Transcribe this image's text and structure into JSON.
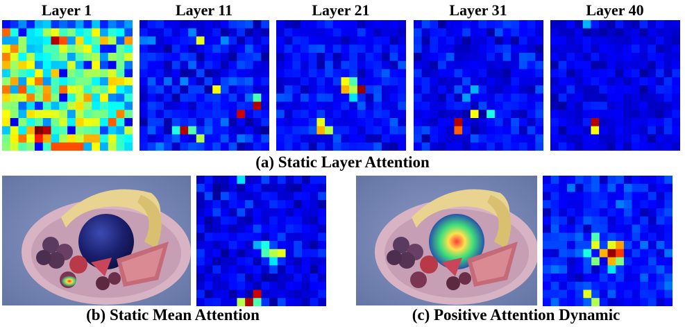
{
  "figure": {
    "layer_titles": [
      "Layer 1",
      "Layer 11",
      "Layer 21",
      "Layer 31",
      "Layer 40"
    ],
    "captions": {
      "a": "(a) Static Layer Attention",
      "b": "(b) Static Mean Attention",
      "c": "(c) Positive Attention Dynamic"
    },
    "colormap": "jet",
    "grid_size": 16,
    "panels": {
      "layer1": {
        "base": 0.45,
        "noise": 0.35,
        "hot": [
          [
            13,
            4,
            1.0
          ],
          [
            13,
            5,
            0.95
          ],
          [
            14,
            4,
            0.85
          ],
          [
            2,
            6,
            0.95
          ],
          [
            2,
            7,
            0.8
          ],
          [
            0,
            4,
            0.3
          ],
          [
            1,
            3,
            0.35
          ],
          [
            15,
            6,
            0.8
          ],
          [
            15,
            7,
            0.8
          ],
          [
            15,
            8,
            0.8
          ],
          [
            15,
            9,
            0.8
          ],
          [
            14,
            10,
            0.7
          ],
          [
            14,
            11,
            0.7
          ],
          [
            11,
            14,
            0.75
          ]
        ],
        "cold_rows": [
          0
        ]
      },
      "layer11": {
        "base": 0.14,
        "noise": 0.12,
        "hot": [
          [
            2,
            7,
            0.6
          ],
          [
            8,
            9,
            0.62
          ],
          [
            9,
            14,
            0.45
          ],
          [
            10,
            14,
            0.95
          ],
          [
            11,
            12,
            0.92
          ],
          [
            13,
            4,
            0.4
          ],
          [
            13,
            5,
            0.95
          ],
          [
            13,
            6,
            0.45
          ],
          [
            14,
            7,
            0.55
          ]
        ]
      },
      "layer21": {
        "base": 0.13,
        "noise": 0.09,
        "hot": [
          [
            7,
            8,
            0.62
          ],
          [
            7,
            9,
            0.45
          ],
          [
            8,
            8,
            0.7
          ],
          [
            8,
            9,
            0.55
          ],
          [
            8,
            10,
            0.98
          ],
          [
            9,
            9,
            0.35
          ],
          [
            12,
            5,
            0.6
          ],
          [
            13,
            5,
            0.7
          ],
          [
            13,
            6,
            0.55
          ]
        ]
      },
      "layer31": {
        "base": 0.12,
        "noise": 0.09,
        "hot": [
          [
            11,
            7,
            0.62
          ],
          [
            11,
            9,
            0.4
          ],
          [
            12,
            5,
            0.95
          ],
          [
            13,
            5,
            0.78
          ],
          [
            8,
            7,
            0.3
          ],
          [
            9,
            6,
            0.28
          ]
        ]
      },
      "layer40": {
        "base": 0.1,
        "noise": 0.07,
        "hot": [
          [
            12,
            5,
            0.95
          ],
          [
            13,
            5,
            0.62
          ],
          [
            0,
            4,
            0.3
          ]
        ]
      },
      "mean_b": {
        "base": 0.11,
        "noise": 0.09,
        "hot": [
          [
            8,
            8,
            0.4
          ],
          [
            9,
            8,
            0.45
          ],
          [
            9,
            9,
            0.55
          ],
          [
            9,
            10,
            0.6
          ],
          [
            8,
            7,
            0.3
          ],
          [
            10,
            9,
            0.35
          ],
          [
            14,
            7,
            0.92
          ],
          [
            15,
            6,
            0.95
          ],
          [
            15,
            5,
            0.55
          ],
          [
            15,
            7,
            0.45
          ],
          [
            0,
            5,
            0.35
          ]
        ]
      },
      "dyn_c": {
        "base": 0.15,
        "noise": 0.1,
        "hot": [
          [
            7,
            6,
            0.45
          ],
          [
            8,
            6,
            0.6
          ],
          [
            8,
            8,
            0.6
          ],
          [
            8,
            9,
            0.72
          ],
          [
            9,
            7,
            0.7
          ],
          [
            9,
            8,
            0.98
          ],
          [
            9,
            9,
            0.82
          ],
          [
            10,
            8,
            0.7
          ],
          [
            10,
            6,
            0.5
          ],
          [
            10,
            9,
            0.5
          ],
          [
            9,
            5,
            0.4
          ],
          [
            11,
            8,
            0.35
          ],
          [
            14,
            5,
            0.6
          ],
          [
            15,
            6,
            0.55
          ]
        ]
      }
    }
  }
}
